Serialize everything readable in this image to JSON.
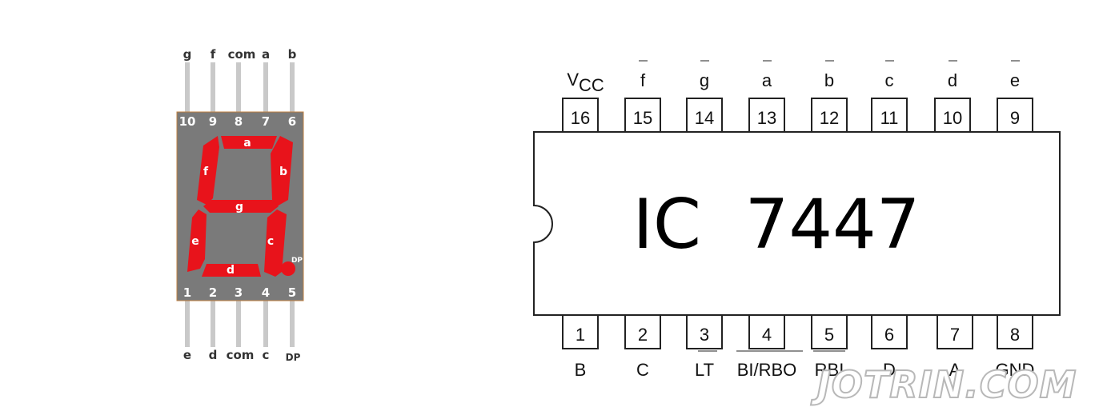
{
  "display": {
    "top_labels": [
      "g",
      "f",
      "com",
      "a",
      "b"
    ],
    "top_pins": [
      "10",
      "9",
      "8",
      "7",
      "6"
    ],
    "bottom_pins": [
      "1",
      "2",
      "3",
      "4",
      "5"
    ],
    "bottom_labels": [
      "e",
      "d",
      "com",
      "c",
      "DP"
    ],
    "segments": {
      "a": "a",
      "b": "b",
      "c": "c",
      "d": "d",
      "e": "e",
      "f": "f",
      "g": "g",
      "dp": "DP"
    },
    "colors": {
      "body": "#7a7a7a",
      "segment": "#e8131b",
      "leg": "#c9c9c9"
    }
  },
  "ic": {
    "name": "IC  7447",
    "top_pins": [
      {
        "num": "16",
        "label": "V",
        "sub": "CC",
        "overbar": false
      },
      {
        "num": "15",
        "label": "f",
        "overbar": true
      },
      {
        "num": "14",
        "label": "g",
        "overbar": true
      },
      {
        "num": "13",
        "label": "a",
        "overbar": true
      },
      {
        "num": "12",
        "label": "b",
        "overbar": true
      },
      {
        "num": "11",
        "label": "c",
        "overbar": true
      },
      {
        "num": "10",
        "label": "d",
        "overbar": true
      },
      {
        "num": "9",
        "label": "e",
        "overbar": true
      }
    ],
    "bottom_pins": [
      {
        "num": "1",
        "label": "B",
        "overbar": false
      },
      {
        "num": "2",
        "label": "C",
        "overbar": false
      },
      {
        "num": "3",
        "label": "LT",
        "overbar": true
      },
      {
        "num": "4",
        "label": "BI/RBO",
        "overbar": true
      },
      {
        "num": "5",
        "label": "RBI",
        "overbar": true
      },
      {
        "num": "6",
        "label": "D",
        "overbar": false
      },
      {
        "num": "7",
        "label": "A",
        "overbar": false
      },
      {
        "num": "8",
        "label": "GND",
        "overbar": false
      }
    ]
  },
  "watermark": "JOTRIN.COM"
}
